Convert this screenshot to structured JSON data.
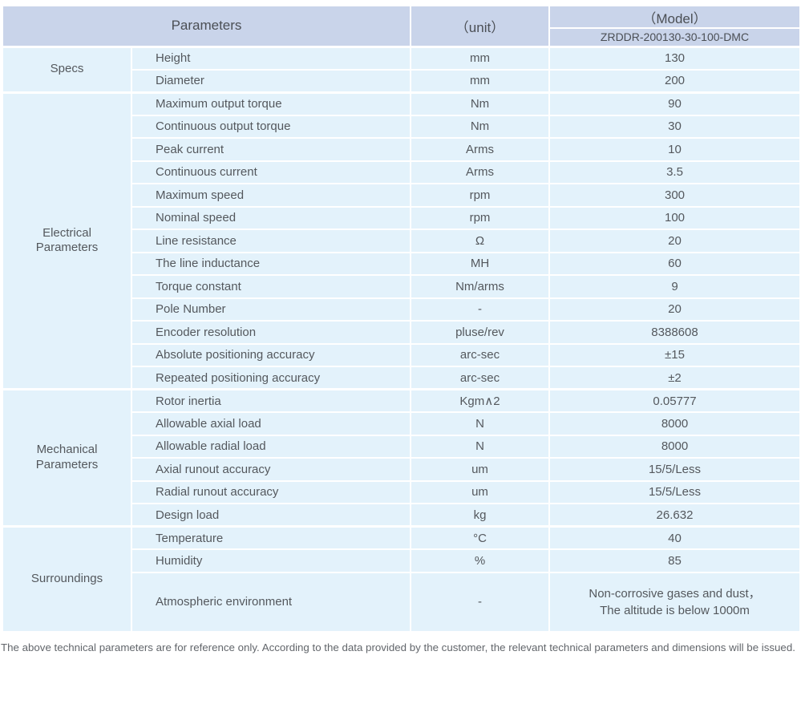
{
  "table": {
    "header": {
      "parameters_label": "Parameters",
      "unit_label": "（unit）",
      "model_label": "（Model）",
      "model_value": "ZRDDR-200130-30-100-DMC"
    },
    "sections": [
      {
        "id": "specs",
        "name": "Specs",
        "rows": [
          {
            "parameter": "Height",
            "unit": "mm",
            "value": "130"
          },
          {
            "parameter": "Diameter",
            "unit": "mm",
            "value": "200"
          }
        ]
      },
      {
        "id": "electrical-parameters",
        "name": "Electrical Parameters",
        "rows": [
          {
            "parameter": "Maximum output torque",
            "unit": "Nm",
            "value": "90"
          },
          {
            "parameter": "Continuous output torque",
            "unit": "Nm",
            "value": "30"
          },
          {
            "parameter": "Peak current",
            "unit": "Arms",
            "value": "10"
          },
          {
            "parameter": "Continuous current",
            "unit": "Arms",
            "value": "3.5"
          },
          {
            "parameter": "Maximum speed",
            "unit": "rpm",
            "value": "300"
          },
          {
            "parameter": "Nominal speed",
            "unit": "rpm",
            "value": "100"
          },
          {
            "parameter": "Line resistance",
            "unit": "Ω",
            "value": "20"
          },
          {
            "parameter": "The line inductance",
            "unit": "MH",
            "value": "60"
          },
          {
            "parameter": "Torque constant",
            "unit": "Nm/arms",
            "value": "9"
          },
          {
            "parameter": "Pole Number",
            "unit": "-",
            "value": "20"
          },
          {
            "parameter": "Encoder resolution",
            "unit": "pluse/rev",
            "value": "8388608"
          },
          {
            "parameter": "Absolute positioning accuracy",
            "unit": "arc-sec",
            "value": "±15"
          },
          {
            "parameter": "Repeated positioning accuracy",
            "unit": "arc-sec",
            "value": "±2"
          }
        ]
      },
      {
        "id": "mechanical-parameters",
        "name": "Mechanical Parameters",
        "rows": [
          {
            "parameter": "Rotor inertia",
            "unit": "Kgm∧2",
            "value": "0.05777"
          },
          {
            "parameter": "Allowable axial load",
            "unit": "N",
            "value": "8000"
          },
          {
            "parameter": "Allowable radial load",
            "unit": "N",
            "value": "8000"
          },
          {
            "parameter": "Axial runout accuracy",
            "unit": "um",
            "value": "15/5/Less"
          },
          {
            "parameter": "Radial runout accuracy",
            "unit": "um",
            "value": "15/5/Less"
          },
          {
            "parameter": "Design load",
            "unit": "kg",
            "value": "26.632"
          }
        ]
      },
      {
        "id": "surroundings",
        "name": "Surroundings",
        "rows": [
          {
            "parameter": "Temperature",
            "unit": "°C",
            "value": "40"
          },
          {
            "parameter": "Humidity",
            "unit": "%",
            "value": "85"
          },
          {
            "parameter": "Atmospheric environment",
            "unit": "-",
            "value": "Non-corrosive gases and dust，\nThe altitude is below 1000m",
            "tall": true
          }
        ]
      }
    ]
  },
  "footer": {
    "note": "The above technical parameters are for reference only. According to the data provided by the customer, the relevant technical parameters and dimensions will be issued."
  },
  "colors": {
    "header_bg": "#c9d4ea",
    "cell_bg": "#e3f2fb",
    "grid": "#ffffff",
    "text": "#54585d",
    "footer_text": "#62666b"
  }
}
